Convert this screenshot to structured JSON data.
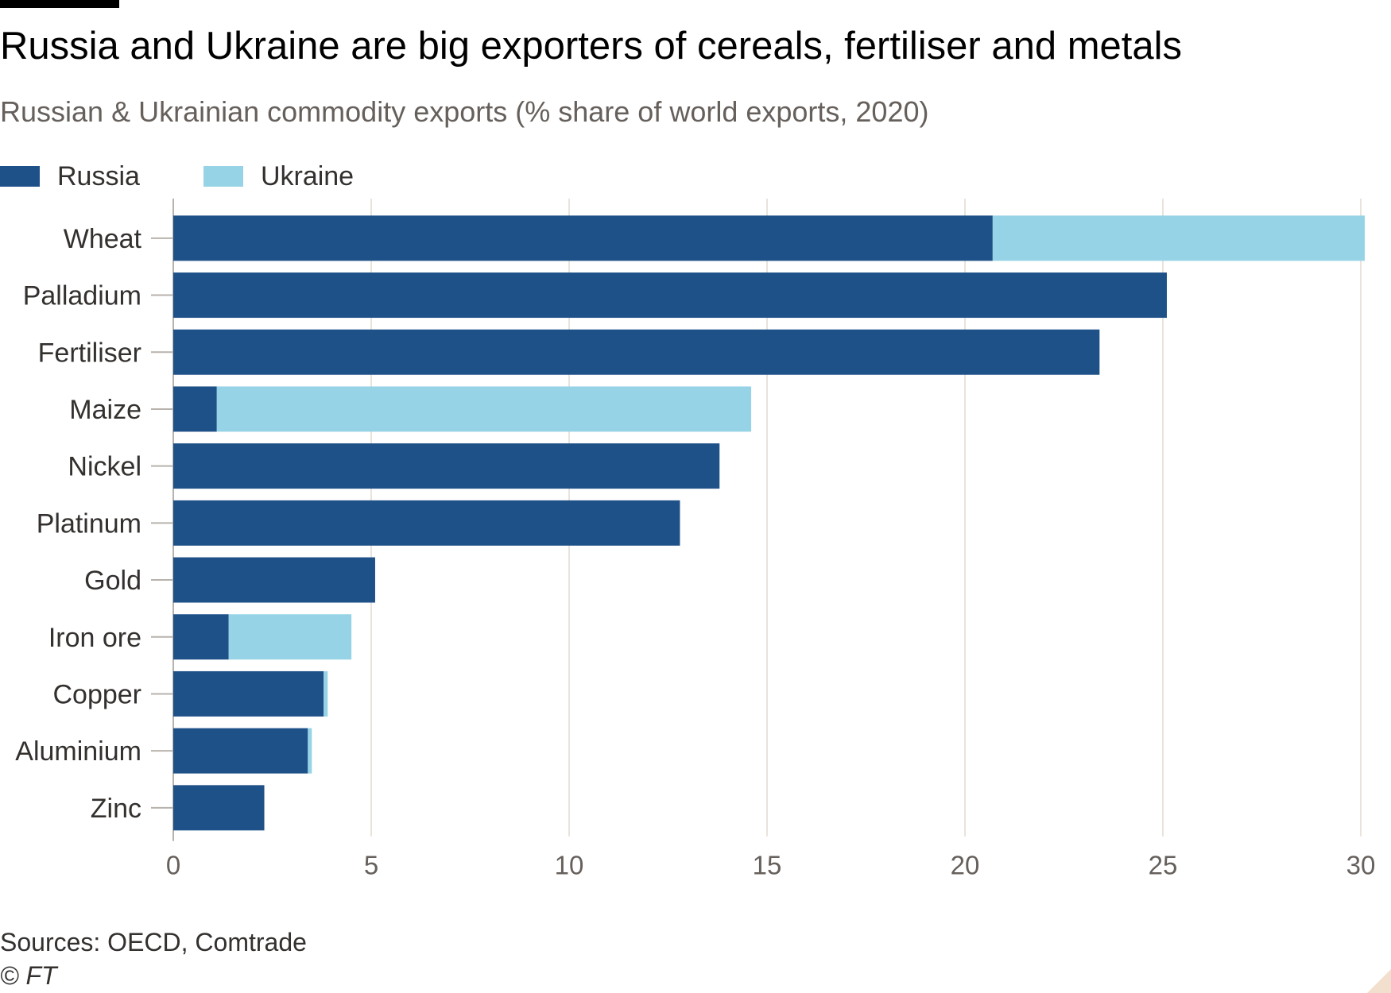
{
  "title": "Russia and Ukraine are big exporters of cereals, fertiliser and metals",
  "subtitle": "Russian & Ukrainian commodity exports (% share of world exports, 2020)",
  "source": "Sources: OECD, Comtrade",
  "copyright": "© FT",
  "colors": {
    "russia": "#1f5189",
    "ukraine": "#96d3e6",
    "grid": "#e9e3dc",
    "axis": "#b8b2ac",
    "label": "#33302e",
    "tick": "#66605c"
  },
  "legend": [
    {
      "name": "Russia",
      "color": "#1f5189"
    },
    {
      "name": "Ukraine",
      "color": "#96d3e6"
    }
  ],
  "chart_data": {
    "type": "bar",
    "orientation": "horizontal",
    "stacked": true,
    "categories": [
      "Wheat",
      "Palladium",
      "Fertiliser",
      "Maize",
      "Nickel",
      "Platinum",
      "Gold",
      "Iron ore",
      "Copper",
      "Aluminium",
      "Zinc"
    ],
    "series": [
      {
        "name": "Russia",
        "values": [
          20.7,
          25.1,
          23.4,
          1.1,
          13.8,
          12.8,
          5.1,
          1.4,
          3.8,
          3.4,
          2.3
        ]
      },
      {
        "name": "Ukraine",
        "values": [
          9.4,
          0.0,
          0.0,
          13.5,
          0.0,
          0.0,
          0.0,
          3.1,
          0.1,
          0.1,
          0.0
        ]
      }
    ],
    "xlim": [
      0,
      30
    ],
    "xticks": [
      0,
      5,
      10,
      15,
      20,
      25,
      30
    ],
    "grid": true,
    "legend_position": "top-left"
  }
}
